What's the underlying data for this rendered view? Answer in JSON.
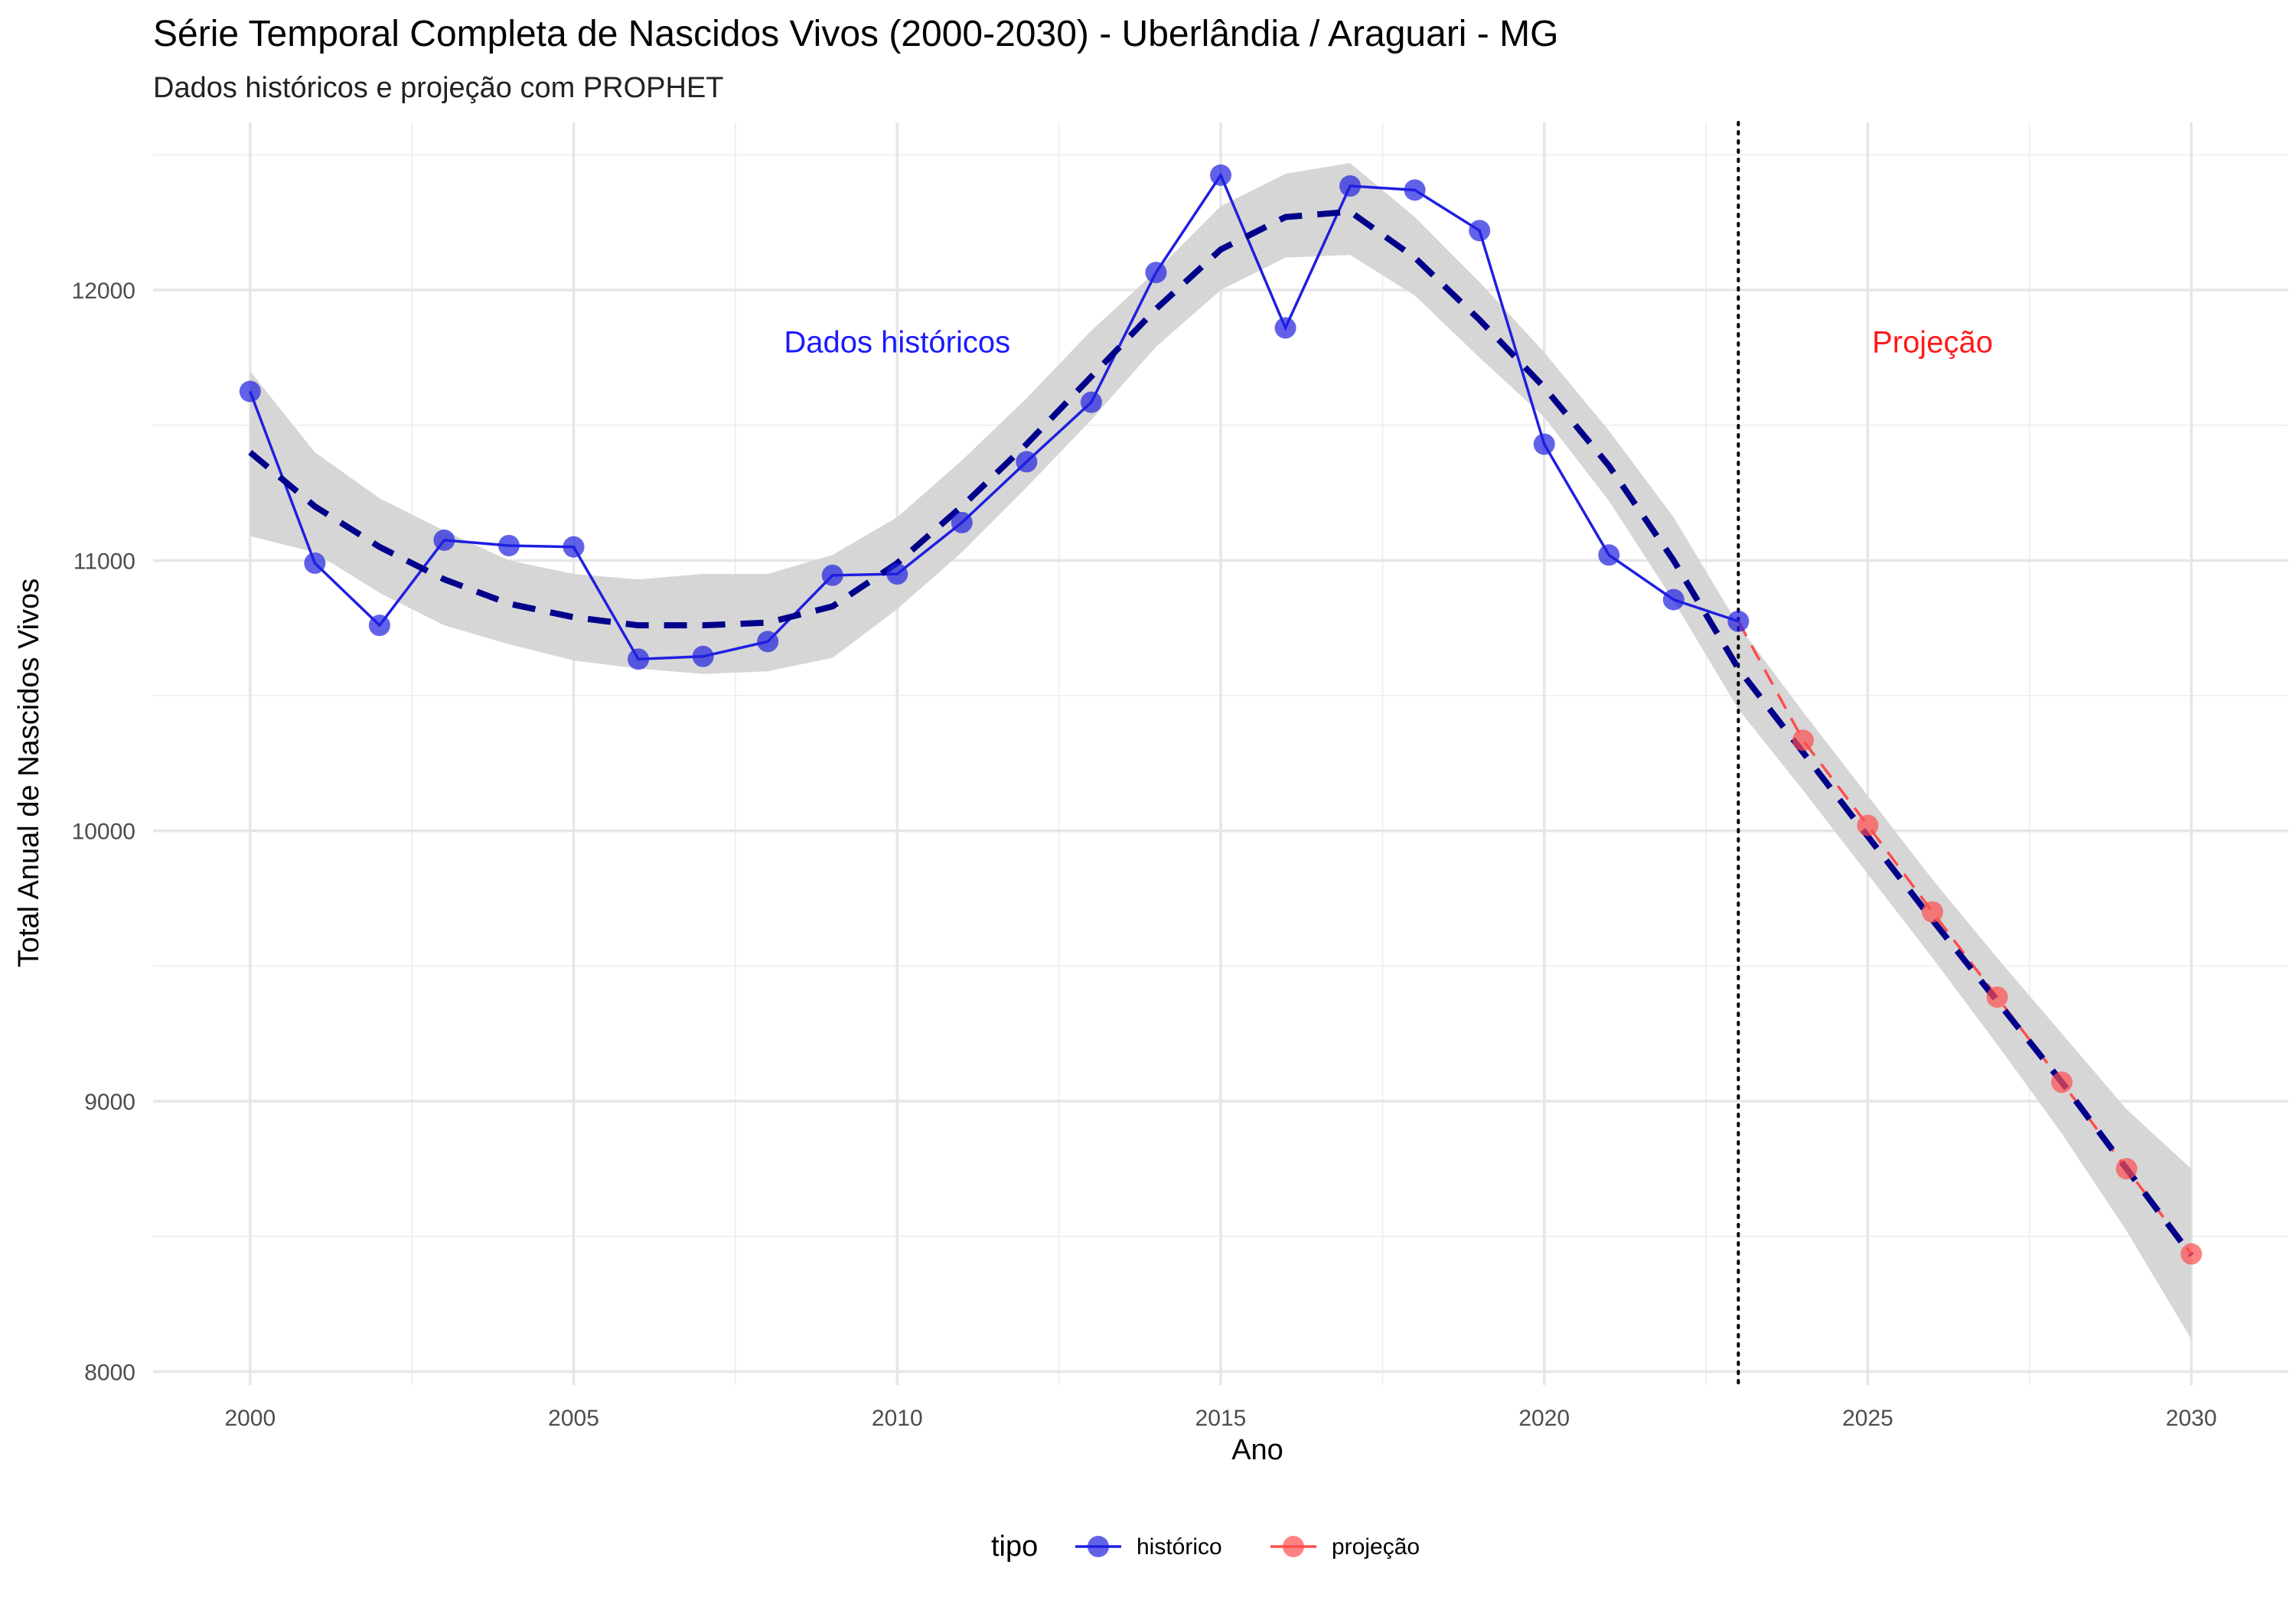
{
  "chart_data": {
    "type": "line",
    "title": "Série Temporal Completa de Nascidos Vivos (2000-2030) -  Uberlândia / Araguari - MG",
    "subtitle": "Dados históricos e projeção com PROPHET",
    "xlabel": "Ano",
    "ylabel": "Total Anual de Nascidos Vivos",
    "xlim": [
      1998.5,
      2031.5
    ],
    "ylim": [
      7950,
      12620
    ],
    "x_ticks": [
      2000,
      2005,
      2010,
      2015,
      2020,
      2025,
      2030
    ],
    "y_ticks": [
      8000,
      9000,
      10000,
      11000,
      12000
    ],
    "grid": true,
    "legend": {
      "title": "tipo",
      "position": "bottom",
      "entries": [
        {
          "label": "histórico",
          "color": "#1f1fe0"
        },
        {
          "label": "projeção",
          "color": "#ff4d4d"
        }
      ]
    },
    "annotations": [
      {
        "text": "Dados históricos",
        "x": 2010,
        "y": 11770,
        "color": "#1a1aff"
      },
      {
        "text": "Projeção",
        "x": 2026,
        "y": 11770,
        "color": "#ff1a1a"
      }
    ],
    "vline": {
      "x": 2023,
      "style": "dotted",
      "color": "#000000"
    },
    "series": [
      {
        "name": "histórico",
        "color": "#1f1fe0",
        "x": [
          2000,
          2001,
          2002,
          2003,
          2004,
          2005,
          2006,
          2007,
          2008,
          2009,
          2010,
          2011,
          2012,
          2013,
          2014,
          2015,
          2016,
          2017,
          2018,
          2019,
          2020,
          2021,
          2022,
          2023
        ],
        "y": [
          11625,
          10990,
          10760,
          11075,
          11055,
          11050,
          10635,
          10645,
          10700,
          10945,
          10950,
          11140,
          11365,
          11585,
          12065,
          12425,
          11860,
          12385,
          12370,
          12220,
          11430,
          11020,
          10855,
          10775
        ]
      },
      {
        "name": "projeção",
        "color": "#ff4d4d",
        "x": [
          2023,
          2024,
          2025,
          2026,
          2027,
          2028,
          2029,
          2030
        ],
        "y": [
          10775,
          10335,
          10020,
          9700,
          9385,
          9070,
          8750,
          8435
        ]
      }
    ],
    "trend": {
      "color": "#00008b",
      "band_color": "#d4d4d4",
      "x": [
        2000,
        2001,
        2002,
        2003,
        2004,
        2005,
        2006,
        2007,
        2008,
        2009,
        2010,
        2011,
        2012,
        2013,
        2014,
        2015,
        2016,
        2017,
        2018,
        2019,
        2020,
        2021,
        2022,
        2023,
        2024,
        2025,
        2026,
        2027,
        2028,
        2029,
        2030
      ],
      "y": [
        11400,
        11200,
        11050,
        10930,
        10840,
        10790,
        10760,
        10760,
        10770,
        10830,
        10990,
        11200,
        11430,
        11680,
        11930,
        12150,
        12270,
        12290,
        12120,
        11890,
        11640,
        11350,
        11000,
        10600,
        10290,
        9980,
        9670,
        9370,
        9070,
        8750,
        8430
      ],
      "lower": [
        11090,
        11030,
        10880,
        10760,
        10690,
        10630,
        10600,
        10580,
        10590,
        10640,
        10820,
        11030,
        11270,
        11520,
        11790,
        12000,
        12120,
        12130,
        11980,
        11750,
        11530,
        11220,
        10850,
        10450,
        10150,
        9840,
        9530,
        9210,
        8880,
        8520,
        8120
      ],
      "upper": [
        11700,
        11400,
        11230,
        11110,
        11000,
        10950,
        10930,
        10950,
        10950,
        11020,
        11160,
        11370,
        11600,
        11850,
        12070,
        12310,
        12430,
        12470,
        12270,
        12030,
        11770,
        11480,
        11160,
        10760,
        10440,
        10130,
        9820,
        9530,
        9250,
        8970,
        8750
      ]
    }
  }
}
